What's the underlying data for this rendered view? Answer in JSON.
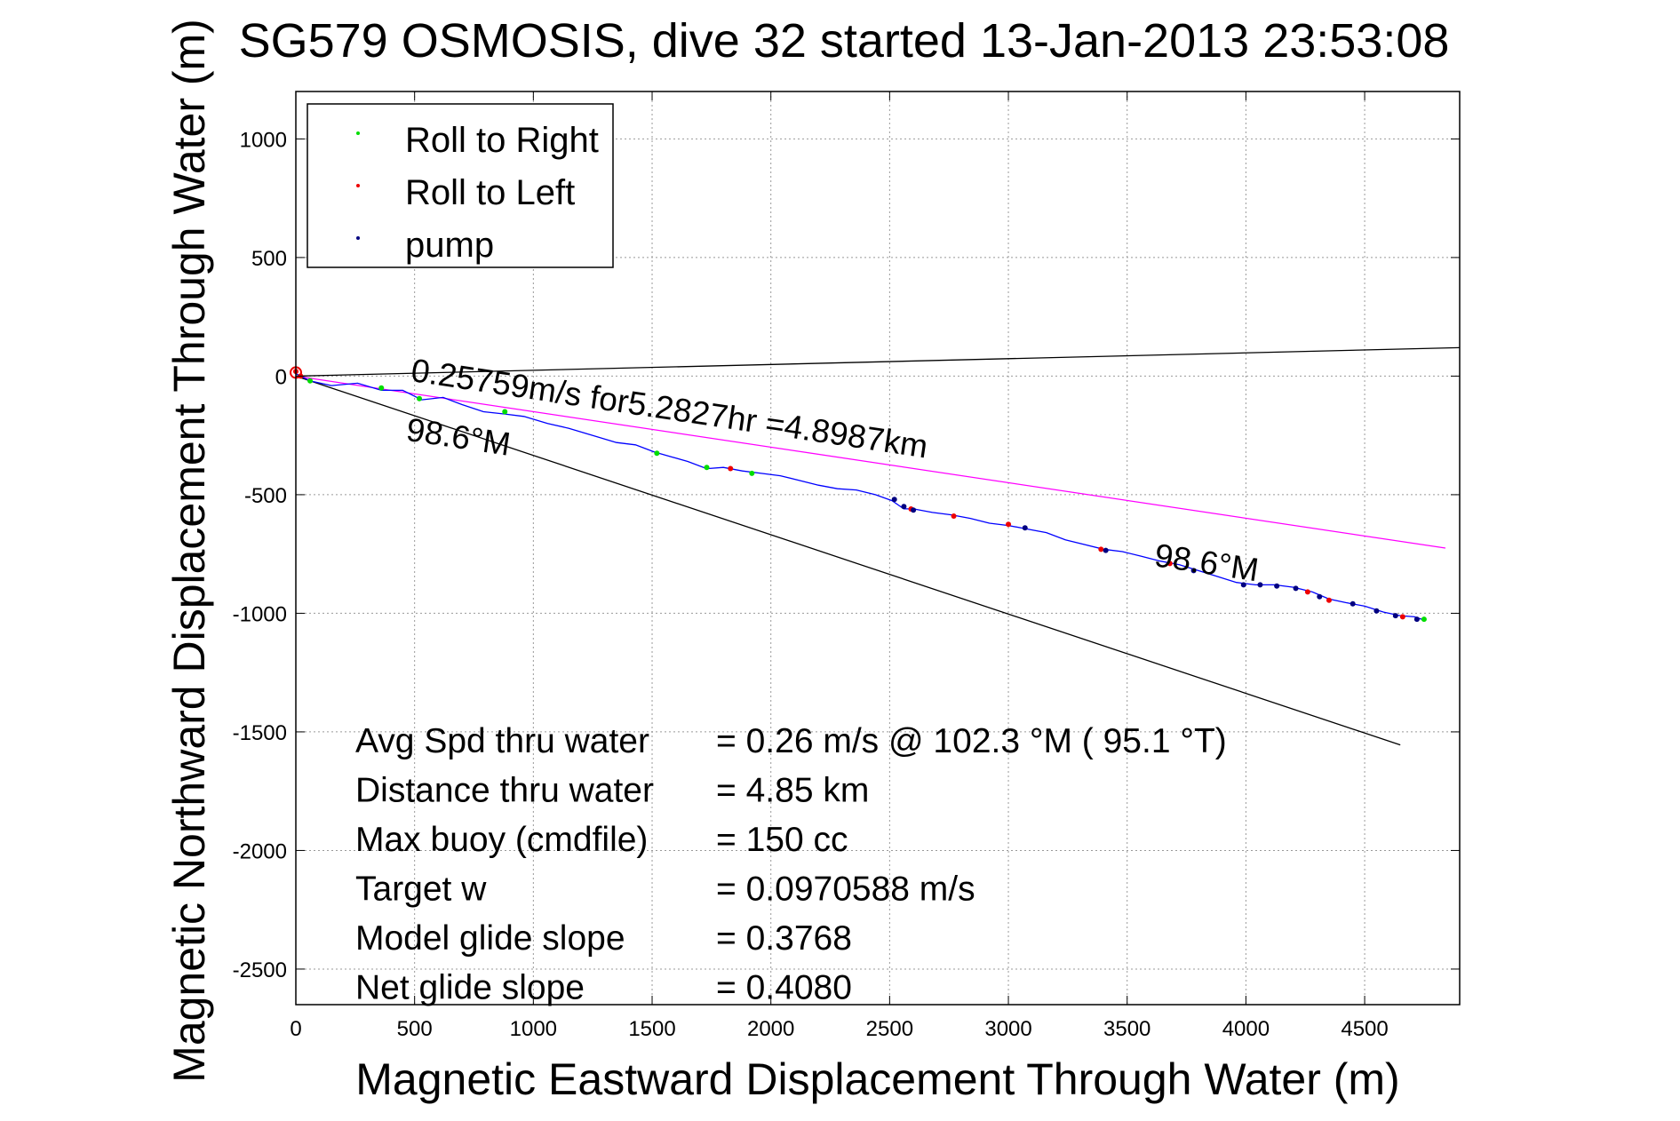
{
  "chart_data": {
    "type": "line",
    "title": "SG579 OSMOSIS, dive 32 started 13-Jan-2013 23:53:08",
    "xlabel": "Magnetic Eastward Displacement Through Water (m)",
    "ylabel": "Magnetic Northward Displacement Through Water (m)",
    "xlim": [
      0,
      4900
    ],
    "ylim": [
      -2650,
      1200
    ],
    "xticks": [
      0,
      500,
      1000,
      1500,
      2000,
      2500,
      3000,
      3500,
      4000,
      4500
    ],
    "yticks": [
      -2500,
      -2000,
      -1500,
      -1000,
      -500,
      0,
      500,
      1000
    ],
    "grid": true,
    "legend_position": "top-left",
    "legend": [
      {
        "label": "Roll to Right",
        "color": "#00dd00"
      },
      {
        "label": "Roll to Left",
        "color": "#ee0000"
      },
      {
        "label": "pump",
        "color": "#000080"
      }
    ],
    "track": {
      "color": "#0000ff",
      "x": [
        0,
        60,
        150,
        260,
        360,
        450,
        530,
        620,
        700,
        790,
        880,
        960,
        1060,
        1150,
        1250,
        1350,
        1430,
        1510,
        1580,
        1650,
        1730,
        1800,
        1880,
        1960,
        2040,
        2120,
        2200,
        2280,
        2360,
        2440,
        2510,
        2560,
        2600,
        2680,
        2760,
        2840,
        2920,
        3000,
        3080,
        3160,
        3240,
        3320,
        3400,
        3480,
        3560,
        3640,
        3720,
        3800,
        3880,
        3960,
        4040,
        4120,
        4200,
        4280,
        4350,
        4420,
        4500,
        4580,
        4650,
        4710,
        4740
      ],
      "y": [
        10,
        -20,
        -40,
        -30,
        -60,
        -60,
        -100,
        -90,
        -120,
        -150,
        -160,
        -170,
        -200,
        -220,
        -250,
        -280,
        -290,
        -320,
        -340,
        -360,
        -390,
        -385,
        -400,
        -410,
        -420,
        -440,
        -460,
        -475,
        -480,
        -500,
        -525,
        -560,
        -560,
        -575,
        -585,
        -600,
        -620,
        -630,
        -645,
        -660,
        -690,
        -710,
        -730,
        -740,
        -760,
        -780,
        -795,
        -820,
        -845,
        -870,
        -880,
        -880,
        -890,
        -910,
        -940,
        -955,
        -970,
        -995,
        -1010,
        -1015,
        -1025
      ]
    },
    "markers": {
      "roll_right": {
        "x": [
          60,
          360,
          520,
          880,
          1520,
          1730,
          1920,
          4750
        ],
        "y": [
          -20,
          -50,
          -95,
          -150,
          -325,
          -385,
          -410,
          -1025
        ]
      },
      "roll_left": {
        "x": [
          0,
          20,
          1830,
          2590,
          2770,
          3000,
          3390,
          3680,
          4260,
          4350,
          4660
        ],
        "y": [
          20,
          0,
          -390,
          -560,
          -590,
          -625,
          -730,
          -790,
          -910,
          -945,
          -1015
        ]
      },
      "pump": {
        "x": [
          2520,
          2560,
          2600,
          3070,
          3410,
          3780,
          3990,
          4060,
          4130,
          4210,
          4310,
          4450,
          4550,
          4630,
          4720
        ],
        "y": [
          -520,
          -550,
          -565,
          -640,
          -735,
          -820,
          -880,
          -880,
          -885,
          -895,
          -930,
          -960,
          -990,
          -1010,
          -1025
        ]
      }
    },
    "lines": [
      {
        "name": "upper bound",
        "color": "#000000",
        "x": [
          0,
          4900
        ],
        "y": [
          0,
          120
        ]
      },
      {
        "name": "lower bound",
        "color": "#000000",
        "x": [
          0,
          4650
        ],
        "y": [
          0,
          -1555
        ]
      },
      {
        "name": "avg velocity",
        "color": "#ff00ff",
        "x": [
          0,
          4840
        ],
        "y": [
          0,
          -725
        ]
      }
    ],
    "annotations": [
      {
        "text": "0.25759m/s for5.2827hr =4.8987km",
        "x": 480,
        "y": -20,
        "rotate": 8.5
      },
      {
        "text": "98.6°M",
        "x": 460,
        "y": -270,
        "rotate": 8.5
      },
      {
        "text": "98.6°M",
        "x": 3610,
        "y": -800,
        "rotate": 8.5
      }
    ],
    "stats": [
      {
        "label": "Avg Spd thru water",
        "value": "=  0.26 m/s @ 102.3 °M ( 95.1 °T)"
      },
      {
        "label": "Distance thru water",
        "value": "=  4.85 km"
      },
      {
        "label": "Max buoy (cmdfile)",
        "value": "= 150 cc"
      },
      {
        "label": "Target w",
        "value": "= 0.0970588 m/s"
      },
      {
        "label": "Model glide slope",
        "value": "= 0.3768"
      },
      {
        "label": "Net glide slope",
        "value": "= 0.4080"
      }
    ]
  }
}
